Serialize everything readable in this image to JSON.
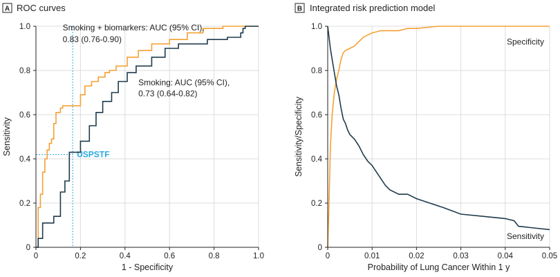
{
  "colors": {
    "orange": "#f5a033",
    "navy": "#1e3a4c",
    "blue": "#29a9e0",
    "grid": "#dcdcdc"
  },
  "chart_data": [
    {
      "type": "line",
      "badge": "A",
      "title": "ROC curves",
      "xlabel": "1 - Specificity",
      "ylabel": "Sensitivity",
      "xlim": [
        0,
        1
      ],
      "ylim": [
        0,
        1
      ],
      "xticks": [
        "0",
        "0.2",
        "0.4",
        "0.6",
        "0.8",
        "1.0"
      ],
      "yticks": [
        "0",
        "0.2",
        "0.4",
        "0.6",
        "0.8",
        "1.0"
      ],
      "grid": true,
      "annotations": [
        {
          "text": "Smoking + biomarkers: AUC (95% CI),",
          "x": 0.12,
          "y": 0.993
        },
        {
          "text": "0.83 (0.76-0.90)",
          "x": 0.12,
          "y": 0.94
        },
        {
          "text": "Smoking: AUC (95% CI),",
          "x": 0.46,
          "y": 0.745
        },
        {
          "text": "0.73 (0.64-0.82)",
          "x": 0.46,
          "y": 0.695
        }
      ],
      "reference": {
        "label": "USPSTF",
        "x": 0.165,
        "y": 0.42
      },
      "series": [
        {
          "key": "biomarkers",
          "color": "orange",
          "x": [
            0,
            0.01,
            0.01,
            0.02,
            0.02,
            0.03,
            0.03,
            0.04,
            0.04,
            0.05,
            0.05,
            0.06,
            0.06,
            0.07,
            0.07,
            0.08,
            0.08,
            0.09,
            0.09,
            0.11,
            0.11,
            0.12,
            0.12,
            0.14,
            0.14,
            0.16,
            0.16,
            0.2,
            0.2,
            0.22,
            0.22,
            0.25,
            0.25,
            0.28,
            0.28,
            0.31,
            0.31,
            0.33,
            0.33,
            0.36,
            0.36,
            0.41,
            0.41,
            0.46,
            0.46,
            0.52,
            0.52,
            0.6,
            0.6,
            0.68,
            0.68,
            0.75,
            0.75,
            0.84,
            0.84,
            0.92,
            0.92,
            1.0
          ],
          "y": [
            0,
            0,
            0.18,
            0.18,
            0.24,
            0.24,
            0.34,
            0.34,
            0.4,
            0.4,
            0.44,
            0.44,
            0.47,
            0.47,
            0.49,
            0.49,
            0.56,
            0.56,
            0.61,
            0.61,
            0.63,
            0.63,
            0.64,
            0.64,
            0.64,
            0.64,
            0.64,
            0.64,
            0.69,
            0.69,
            0.73,
            0.73,
            0.75,
            0.75,
            0.77,
            0.77,
            0.79,
            0.79,
            0.8,
            0.8,
            0.82,
            0.82,
            0.86,
            0.86,
            0.89,
            0.89,
            0.92,
            0.92,
            0.94,
            0.94,
            0.97,
            0.97,
            0.99,
            0.99,
            1.0,
            1.0,
            1.0,
            1.0
          ]
        },
        {
          "key": "smoking",
          "color": "navy",
          "x": [
            0,
            0.01,
            0.01,
            0.03,
            0.03,
            0.08,
            0.08,
            0.11,
            0.11,
            0.13,
            0.13,
            0.15,
            0.15,
            0.17,
            0.17,
            0.2,
            0.2,
            0.24,
            0.24,
            0.27,
            0.27,
            0.3,
            0.3,
            0.34,
            0.34,
            0.37,
            0.37,
            0.41,
            0.41,
            0.45,
            0.45,
            0.52,
            0.52,
            0.58,
            0.58,
            0.64,
            0.64,
            0.77,
            0.77,
            0.86,
            0.86,
            0.92,
            0.92,
            0.93,
            0.93,
            0.94,
            0.94,
            1.0
          ],
          "y": [
            0,
            0,
            0.04,
            0.04,
            0.11,
            0.11,
            0.14,
            0.14,
            0.25,
            0.25,
            0.3,
            0.3,
            0.43,
            0.43,
            0.43,
            0.43,
            0.48,
            0.48,
            0.55,
            0.55,
            0.61,
            0.61,
            0.66,
            0.66,
            0.7,
            0.7,
            0.75,
            0.75,
            0.79,
            0.79,
            0.82,
            0.82,
            0.86,
            0.86,
            0.9,
            0.9,
            0.92,
            0.92,
            0.94,
            0.94,
            0.95,
            0.95,
            0.97,
            0.97,
            0.99,
            0.99,
            1.0,
            1.0
          ]
        }
      ]
    },
    {
      "type": "line",
      "badge": "B",
      "title": "Integrated risk prediction model",
      "xlabel": "Probability of Lung Cancer Within 1 y",
      "ylabel": "Sensitivity/Specificity",
      "xlim": [
        0,
        0.05
      ],
      "ylim": [
        0,
        1
      ],
      "xticks": [
        "0",
        "0.01",
        "0.02",
        "0.03",
        "0.04",
        "0.05"
      ],
      "yticks": [
        "0",
        "0.2",
        "0.4",
        "0.6",
        "0.8",
        "1.0"
      ],
      "grid": true,
      "series": [
        {
          "name": "Specificity",
          "color": "orange",
          "x": [
            0,
            0.0003,
            0.0006,
            0.001,
            0.0015,
            0.002,
            0.0025,
            0.003,
            0.0035,
            0.004,
            0.005,
            0.006,
            0.007,
            0.008,
            0.009,
            0.01,
            0.012,
            0.014,
            0.016,
            0.018,
            0.02,
            0.025,
            0.03,
            0.04,
            0.05
          ],
          "y": [
            0,
            0.2,
            0.45,
            0.6,
            0.7,
            0.76,
            0.8,
            0.85,
            0.88,
            0.89,
            0.9,
            0.91,
            0.93,
            0.95,
            0.96,
            0.97,
            0.98,
            0.98,
            0.98,
            0.99,
            0.99,
            1.0,
            1.0,
            1.0,
            1.0
          ]
        },
        {
          "name": "Sensitivity",
          "color": "navy",
          "x": [
            0,
            0.0003,
            0.0006,
            0.001,
            0.0015,
            0.002,
            0.0025,
            0.003,
            0.0035,
            0.004,
            0.0045,
            0.005,
            0.006,
            0.007,
            0.008,
            0.009,
            0.01,
            0.011,
            0.012,
            0.013,
            0.014,
            0.016,
            0.018,
            0.02,
            0.023,
            0.026,
            0.03,
            0.035,
            0.04,
            0.042,
            0.043,
            0.05
          ],
          "y": [
            1.0,
            0.95,
            0.9,
            0.85,
            0.79,
            0.73,
            0.69,
            0.63,
            0.58,
            0.56,
            0.53,
            0.51,
            0.49,
            0.46,
            0.42,
            0.39,
            0.37,
            0.34,
            0.31,
            0.28,
            0.26,
            0.24,
            0.24,
            0.22,
            0.2,
            0.18,
            0.15,
            0.14,
            0.13,
            0.12,
            0.095,
            0.08
          ]
        }
      ]
    }
  ]
}
